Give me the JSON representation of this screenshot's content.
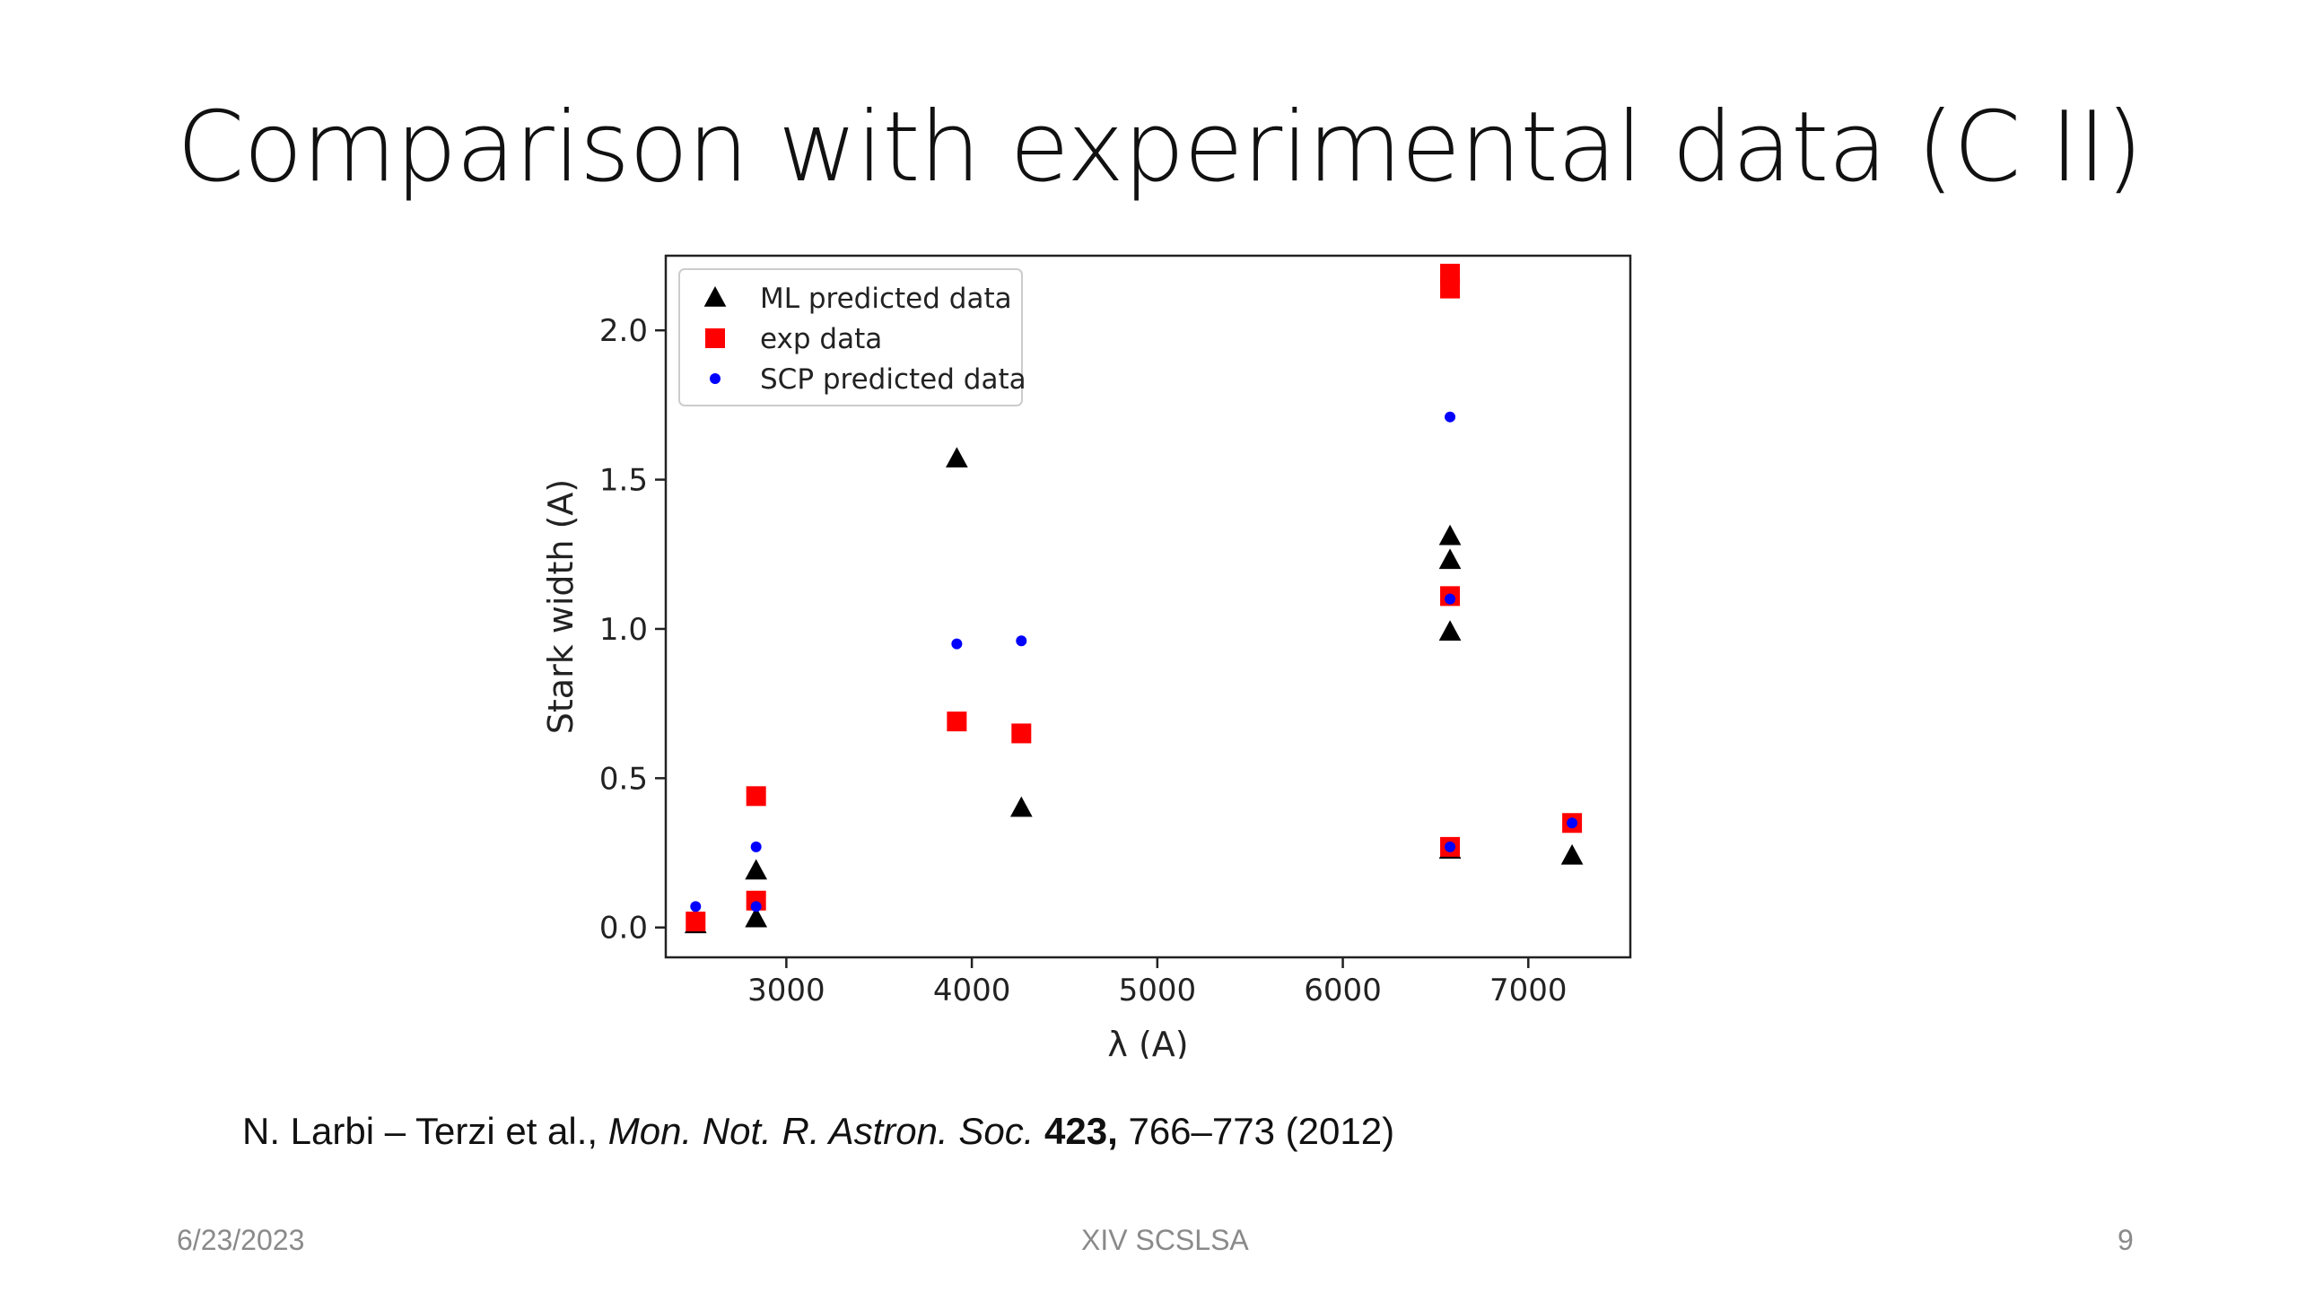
{
  "slide": {
    "title": "Comparison with experimental data (C II)",
    "citation": {
      "authors": "N. Larbi – Terzi et al.,",
      "journal": "Mon. Not. R. Astron. Soc.",
      "volume": "423,",
      "pages_year": "766–773 (2012)"
    },
    "footer": {
      "date": "6/23/2023",
      "center": "XIV SCSLSA",
      "page": "9"
    }
  },
  "chart_data": {
    "type": "scatter",
    "xlabel": "λ (A)",
    "ylabel": "Stark width (A)",
    "xlim": [
      2350,
      7550
    ],
    "ylim": [
      -0.1,
      2.25
    ],
    "xticks": [
      3000,
      4000,
      5000,
      6000,
      7000
    ],
    "xtick_labels": [
      "3000",
      "4000",
      "5000",
      "6000",
      "7000"
    ],
    "yticks": [
      0.0,
      0.5,
      1.0,
      1.5,
      2.0
    ],
    "ytick_labels": [
      "0.0",
      "0.5",
      "1.0",
      "1.5",
      "2.0"
    ],
    "grid": false,
    "legend_position": "upper-left",
    "colors": {
      "ml": "#000000",
      "exp": "#ff0000",
      "scp": "#0000ff"
    },
    "series": [
      {
        "name": "ML predicted data",
        "marker": "triangle",
        "color": "#000000",
        "points": [
          [
            2511,
            0.01
          ],
          [
            2837,
            0.03
          ],
          [
            2837,
            0.19
          ],
          [
            3919,
            1.57
          ],
          [
            4267,
            0.4
          ],
          [
            6578,
            0.99
          ],
          [
            6578,
            1.23
          ],
          [
            6578,
            1.31
          ],
          [
            6578,
            0.26
          ],
          [
            7236,
            0.24
          ]
        ]
      },
      {
        "name": "exp data",
        "marker": "square",
        "color": "#ff0000",
        "points": [
          [
            2511,
            0.02
          ],
          [
            2837,
            0.09
          ],
          [
            2837,
            0.44
          ],
          [
            3919,
            0.69
          ],
          [
            4267,
            0.65
          ],
          [
            6578,
            2.19
          ],
          [
            6578,
            2.14
          ],
          [
            6578,
            1.11
          ],
          [
            6578,
            0.27
          ],
          [
            7236,
            0.35
          ]
        ]
      },
      {
        "name": "SCP predicted data",
        "marker": "dot",
        "color": "#0000ff",
        "points": [
          [
            2511,
            0.07
          ],
          [
            2837,
            0.27
          ],
          [
            2837,
            0.07
          ],
          [
            3919,
            0.95
          ],
          [
            4267,
            0.96
          ],
          [
            6578,
            1.71
          ],
          [
            6578,
            1.1
          ],
          [
            6578,
            0.27
          ],
          [
            7236,
            0.35
          ]
        ]
      }
    ]
  }
}
